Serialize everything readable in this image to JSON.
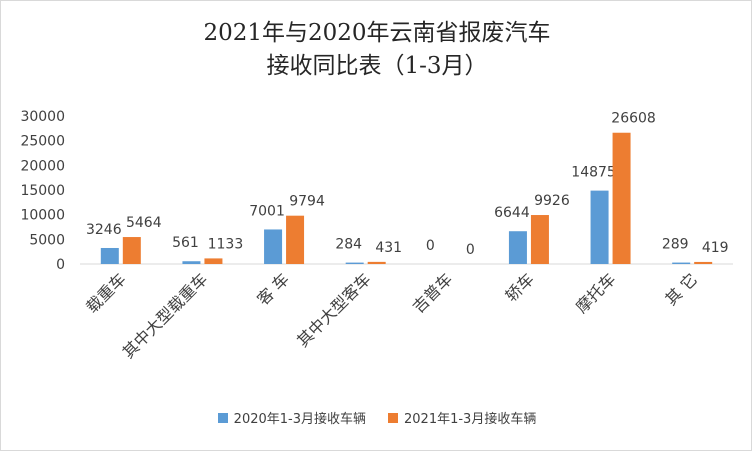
{
  "chart_data": {
    "type": "bar",
    "title_lines": [
      "2021年与2020年云南省报废汽车",
      "接收同比表（1-3月）"
    ],
    "categories": [
      "载重车",
      "其中大型载重车",
      "客 车",
      "其中大型客车",
      "吉普车",
      "轿车",
      "摩托车",
      "其 它"
    ],
    "series": [
      {
        "name": "2020年1-3月接收车辆",
        "color": "#5b9bd5",
        "values": [
          3246,
          561,
          7001,
          284,
          0,
          6644,
          14875,
          289
        ]
      },
      {
        "name": "2021年1-3月接收车辆",
        "color": "#ed7d31",
        "values": [
          5464,
          1133,
          9794,
          431,
          0,
          9926,
          26608,
          419
        ]
      }
    ],
    "ylim": [
      0,
      30000
    ],
    "yticks": [
      0,
      5000,
      10000,
      15000,
      20000,
      25000,
      30000
    ],
    "grid": false,
    "legend_position": "bottom"
  }
}
